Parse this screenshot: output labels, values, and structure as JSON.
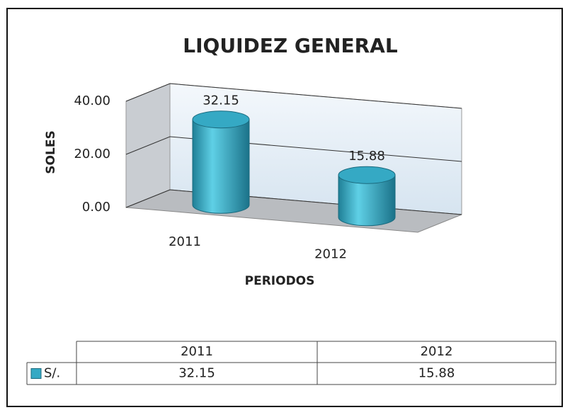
{
  "chart_data": {
    "type": "cylinder3d",
    "title": "LIQUIDEZ GENERAL",
    "y_label": "SOLES",
    "x_label": "PERIODOS",
    "categories": [
      "2011",
      "2012"
    ],
    "series": [
      {
        "name": "S/.",
        "color": "#35a9c4",
        "values": [
          32.15,
          15.88
        ]
      }
    ],
    "ylim": [
      0,
      40
    ],
    "yticks": [
      {
        "value": 0,
        "label": "0.00"
      },
      {
        "value": 20,
        "label": "20.00"
      },
      {
        "value": 40,
        "label": "40.00"
      }
    ],
    "grid": true,
    "data_table": true
  }
}
